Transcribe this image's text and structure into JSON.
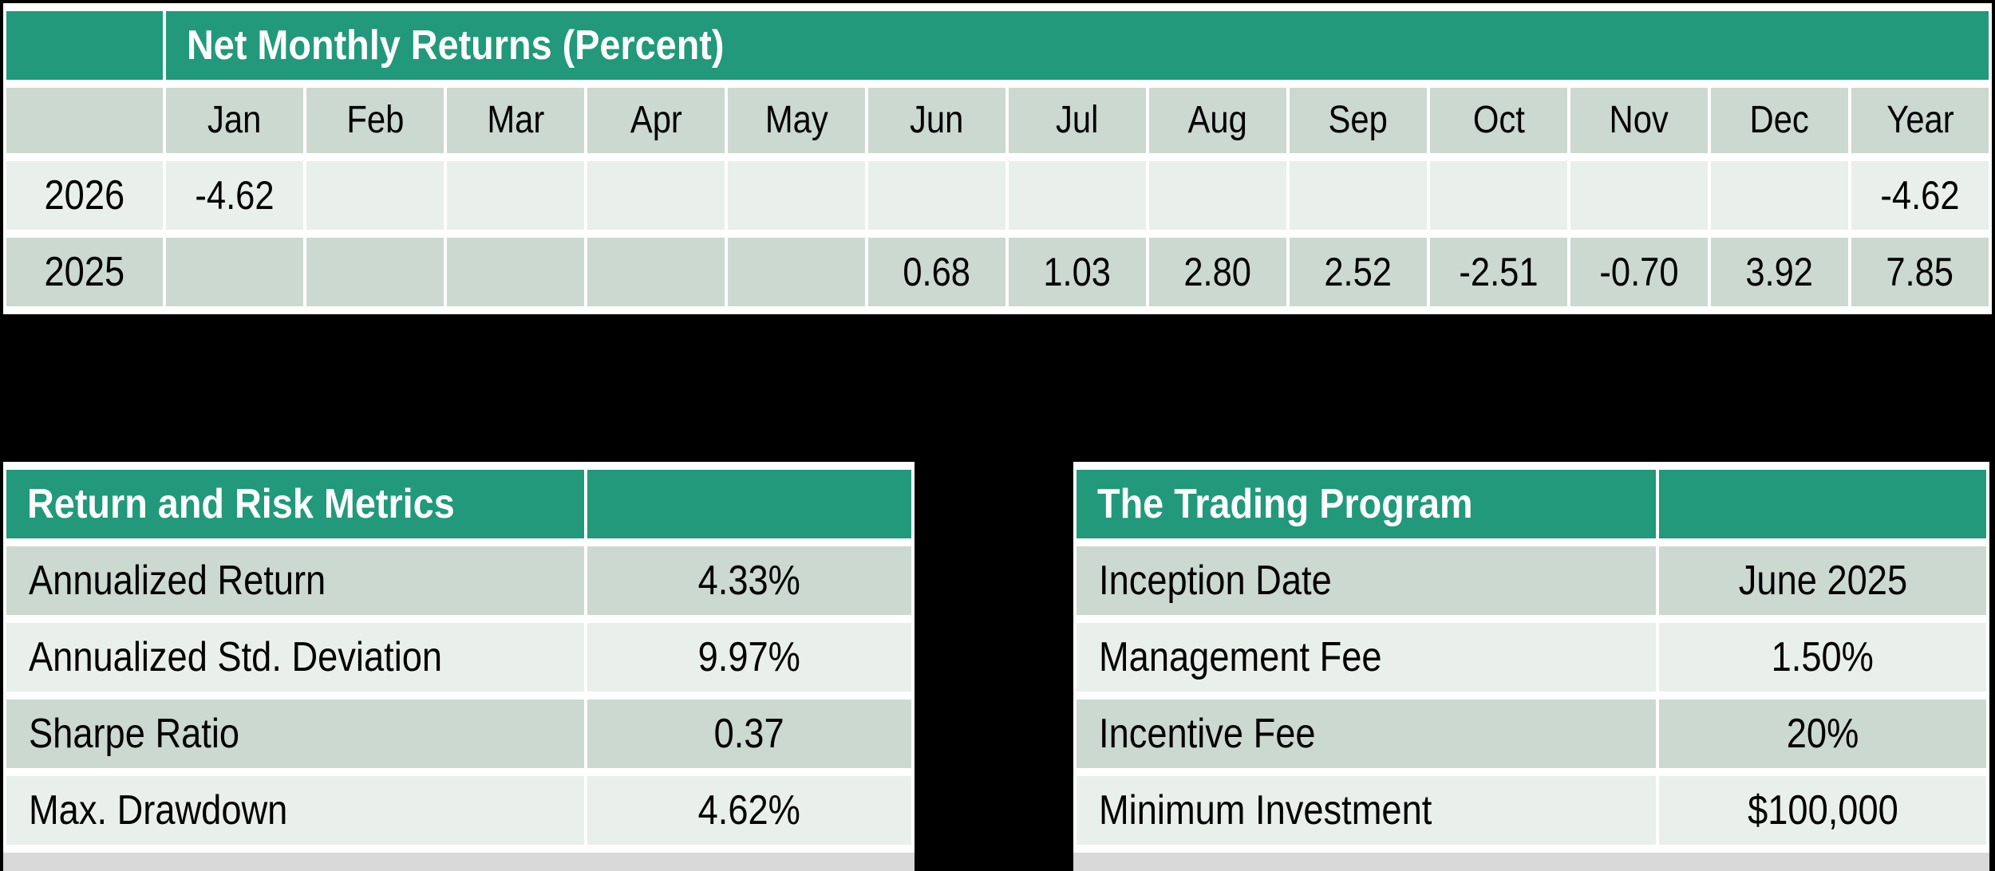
{
  "colors": {
    "accent_green": "#21997a",
    "band_dark": "#cbd9d0",
    "band_light": "#e9efeb",
    "gridline_white": "#ffffff",
    "background_black": "#000000",
    "cropped_row_gray": "#d9d9d9",
    "header_text": "#ffffff",
    "body_text": "#000000"
  },
  "monthly_returns": {
    "title": "Net Monthly Returns (Percent)",
    "columns": [
      "Jan",
      "Feb",
      "Mar",
      "Apr",
      "May",
      "Jun",
      "Jul",
      "Aug",
      "Sep",
      "Oct",
      "Nov",
      "Dec",
      "Year"
    ],
    "rows": [
      {
        "year": "2026",
        "values": [
          "-4.62",
          "",
          "",
          "",
          "",
          "",
          "",
          "",
          "",
          "",
          "",
          "",
          "-4.62"
        ]
      },
      {
        "year": "2025",
        "values": [
          "",
          "",
          "",
          "",
          "",
          "0.68",
          "1.03",
          "2.80",
          "2.52",
          "-2.51",
          "-0.70",
          "3.92",
          "7.85"
        ]
      }
    ]
  },
  "risk_metrics": {
    "title": "Return and Risk Metrics",
    "rows": [
      {
        "label": "Annualized Return",
        "value": "4.33%"
      },
      {
        "label": "Annualized Std. Deviation",
        "value": "9.97%"
      },
      {
        "label": "Sharpe Ratio",
        "value": "0.37"
      },
      {
        "label": "Max. Drawdown",
        "value": "4.62%"
      }
    ]
  },
  "trading_program": {
    "title": "The Trading Program",
    "rows": [
      {
        "label": "Inception Date",
        "value": "June 2025"
      },
      {
        "label": "Management Fee",
        "value": "1.50%"
      },
      {
        "label": "Incentive Fee",
        "value": "20%"
      },
      {
        "label": "Minimum Investment",
        "value": "$100,000"
      }
    ]
  }
}
